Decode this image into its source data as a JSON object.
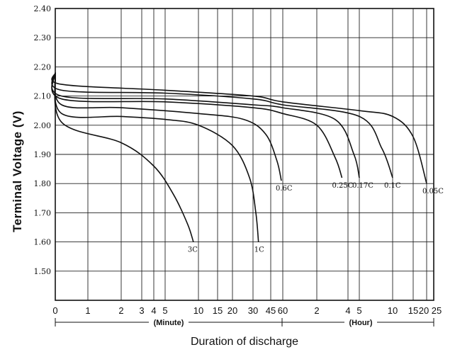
{
  "chart_data": {
    "type": "line",
    "title": "",
    "ylabel": "Terminal Voltage  (V)",
    "xlabel": "Duration of discharge",
    "ylim": [
      1.4,
      2.4
    ],
    "yticks": [
      "2.40",
      "2.30",
      "2.20",
      "2.10",
      "2.00",
      "1.90",
      "1.80",
      "1.70",
      "1.60",
      "1.50"
    ],
    "x_scale": "log",
    "x_minute_ticks": [
      {
        "label": "0",
        "minutes": 0
      },
      {
        "label": "1",
        "minutes": 1
      },
      {
        "label": "2",
        "minutes": 2
      },
      {
        "label": "3",
        "minutes": 3
      },
      {
        "label": "4",
        "minutes": 4
      },
      {
        "label": "5",
        "minutes": 5
      },
      {
        "label": "10",
        "minutes": 10
      },
      {
        "label": "15",
        "minutes": 15
      },
      {
        "label": "20",
        "minutes": 20
      },
      {
        "label": "30",
        "minutes": 30
      },
      {
        "label": "45",
        "minutes": 45
      },
      {
        "label": "60",
        "minutes": 60
      }
    ],
    "x_hour_ticks": [
      {
        "label": "2",
        "hours": 2
      },
      {
        "label": "4",
        "hours": 4
      },
      {
        "label": "5",
        "hours": 5
      },
      {
        "label": "10",
        "hours": 10
      },
      {
        "label": "15",
        "hours": 15
      },
      {
        "label": "20",
        "hours": 20
      },
      {
        "label": "25",
        "hours": 25
      }
    ],
    "x_unit_labels": {
      "minute": "(Minute)",
      "hour": "(Hour)"
    },
    "grid": true,
    "series": [
      {
        "name": "3C",
        "points": [
          [
            0,
            2.18
          ],
          [
            0.3,
            2.01
          ],
          [
            2,
            1.94
          ],
          [
            4,
            1.86
          ],
          [
            6,
            1.76
          ],
          [
            8,
            1.66
          ],
          [
            9,
            1.6
          ]
        ]
      },
      {
        "name": "1C",
        "points": [
          [
            0,
            2.18
          ],
          [
            0.3,
            2.04
          ],
          [
            2,
            2.03
          ],
          [
            5,
            2.02
          ],
          [
            10,
            2.0
          ],
          [
            20,
            1.93
          ],
          [
            28,
            1.82
          ],
          [
            32,
            1.7
          ],
          [
            34,
            1.6
          ]
        ]
      },
      {
        "name": "0.6C",
        "points": [
          [
            0,
            2.18
          ],
          [
            0.3,
            2.07
          ],
          [
            2,
            2.06
          ],
          [
            10,
            2.04
          ],
          [
            25,
            2.02
          ],
          [
            40,
            1.97
          ],
          [
            52,
            1.88
          ],
          [
            58,
            1.81
          ]
        ]
      },
      {
        "name": "0.25C",
        "points": [
          [
            0,
            2.18
          ],
          [
            0.3,
            2.09
          ],
          [
            5,
            2.08
          ],
          [
            30,
            2.06
          ],
          [
            60,
            2.04
          ],
          [
            120,
            2.0
          ],
          [
            180,
            1.89
          ],
          [
            210,
            1.82
          ]
        ]
      },
      {
        "name": "0.17C",
        "points": [
          [
            0,
            2.18
          ],
          [
            0.3,
            2.1
          ],
          [
            5,
            2.09
          ],
          [
            30,
            2.07
          ],
          [
            60,
            2.06
          ],
          [
            180,
            2.02
          ],
          [
            270,
            1.9
          ],
          [
            300,
            1.82
          ]
        ]
      },
      {
        "name": "0.1C",
        "points": [
          [
            0,
            2.18
          ],
          [
            0.3,
            2.12
          ],
          [
            5,
            2.11
          ],
          [
            30,
            2.09
          ],
          [
            60,
            2.07
          ],
          [
            300,
            2.03
          ],
          [
            480,
            1.92
          ],
          [
            600,
            1.82
          ]
        ]
      },
      {
        "name": "0.05C",
        "points": [
          [
            0,
            2.18
          ],
          [
            0.3,
            2.14
          ],
          [
            5,
            2.12
          ],
          [
            30,
            2.1
          ],
          [
            60,
            2.08
          ],
          [
            300,
            2.05
          ],
          [
            600,
            2.03
          ],
          [
            900,
            1.96
          ],
          [
            1200,
            1.8
          ]
        ]
      }
    ]
  }
}
